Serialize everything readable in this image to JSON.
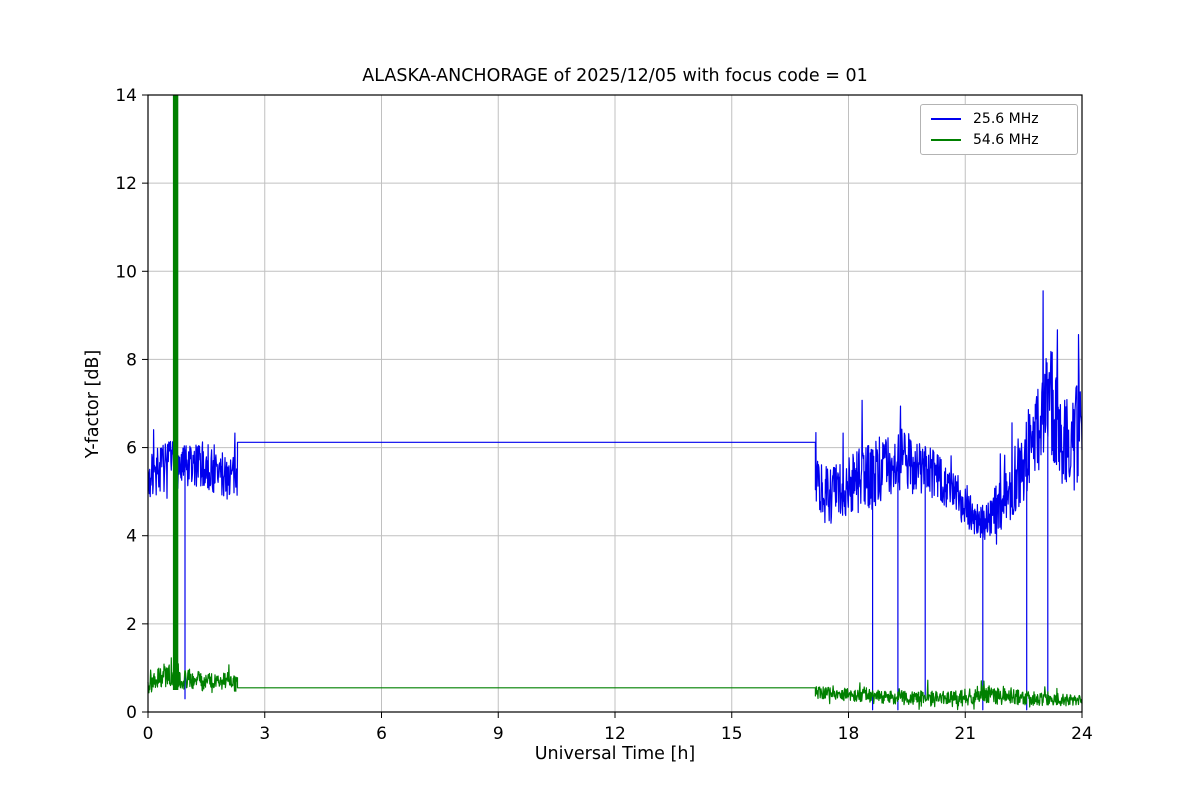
{
  "chart_data": {
    "type": "line",
    "title": "ALASKA-ANCHORAGE of 2025/12/05 with focus code = 01",
    "xlabel": "Universal Time [h]",
    "ylabel": "Y-factor [dB]",
    "xlim": [
      0,
      24
    ],
    "ylim": [
      0,
      14
    ],
    "xticks": [
      0,
      3,
      6,
      9,
      12,
      15,
      18,
      21,
      24
    ],
    "yticks": [
      0,
      2,
      4,
      6,
      8,
      10,
      12,
      14
    ],
    "grid": true,
    "legend_position": "upper right",
    "style": {
      "grid_color": "#c0c0c0",
      "axis_color": "#000000",
      "background": "#ffffff"
    },
    "render": {
      "seed": 7,
      "sample_per_hour": 90,
      "burst_prob": 0.08,
      "burst_scale": 2.4
    },
    "series": [
      {
        "name": "25.6 MHz",
        "color": "#0000ee",
        "segments": [
          {
            "kind": "noisy",
            "x0": 0.0,
            "x1": 2.3,
            "mean": [
              [
                0,
                5.2
              ],
              [
                0.25,
                5.5
              ],
              [
                0.6,
                5.6
              ],
              [
                1.0,
                5.5
              ],
              [
                1.4,
                5.6
              ],
              [
                1.8,
                5.4
              ],
              [
                2.3,
                5.35
              ]
            ],
            "amp": [
              [
                0,
                0.55
              ],
              [
                2.3,
                0.55
              ]
            ]
          },
          {
            "kind": "flat",
            "x0": 2.3,
            "x1": 17.15,
            "value": 6.12
          },
          {
            "kind": "noisy",
            "x0": 17.15,
            "x1": 24.0,
            "mean": [
              [
                17.15,
                5.5
              ],
              [
                17.35,
                4.9
              ],
              [
                17.8,
                5.0
              ],
              [
                18.3,
                5.3
              ],
              [
                18.8,
                5.45
              ],
              [
                19.3,
                5.75
              ],
              [
                19.7,
                5.6
              ],
              [
                20.1,
                5.45
              ],
              [
                20.5,
                5.15
              ],
              [
                20.9,
                4.85
              ],
              [
                21.3,
                4.35
              ],
              [
                21.6,
                4.35
              ],
              [
                21.9,
                4.7
              ],
              [
                22.2,
                5.1
              ],
              [
                22.5,
                5.7
              ],
              [
                22.8,
                6.3
              ],
              [
                23.05,
                6.9
              ],
              [
                23.25,
                6.9
              ],
              [
                23.5,
                6.3
              ],
              [
                23.75,
                6.1
              ],
              [
                24,
                6.3
              ]
            ],
            "amp": [
              [
                17.15,
                0.65
              ],
              [
                18.5,
                0.75
              ],
              [
                19.5,
                0.7
              ],
              [
                20.5,
                0.5
              ],
              [
                21.4,
                0.4
              ],
              [
                22.0,
                0.65
              ],
              [
                22.7,
                1.0
              ],
              [
                23.1,
                1.4
              ],
              [
                23.5,
                1.0
              ],
              [
                24,
                1.3
              ]
            ]
          }
        ],
        "spikes": [
          {
            "x": 0.95,
            "y": 0.3
          },
          {
            "x": 18.62,
            "y": 0.05
          },
          {
            "x": 19.27,
            "y": 0.05
          },
          {
            "x": 19.97,
            "y": 0.3
          },
          {
            "x": 21.45,
            "y": 0.05
          },
          {
            "x": 22.58,
            "y": 0.05
          },
          {
            "x": 23.12,
            "y": 0.25
          }
        ],
        "bars": []
      },
      {
        "name": "54.6 MHz",
        "color": "#008000",
        "segments": [
          {
            "kind": "noisy",
            "x0": 0.0,
            "x1": 2.3,
            "mean": [
              [
                0,
                0.6
              ],
              [
                0.3,
                0.8
              ],
              [
                0.55,
                0.85
              ],
              [
                0.9,
                0.75
              ],
              [
                1.3,
                0.7
              ],
              [
                1.7,
                0.65
              ],
              [
                2.05,
                0.72
              ],
              [
                2.3,
                0.6
              ]
            ],
            "amp": [
              [
                0,
                0.2
              ],
              [
                0.5,
                0.28
              ],
              [
                2.3,
                0.18
              ]
            ]
          },
          {
            "kind": "flat",
            "x0": 2.3,
            "x1": 17.15,
            "value": 0.55
          },
          {
            "kind": "noisy",
            "x0": 17.15,
            "x1": 24.0,
            "mean": [
              [
                17.15,
                0.45
              ],
              [
                18.0,
                0.4
              ],
              [
                19.0,
                0.35
              ],
              [
                20.0,
                0.3
              ],
              [
                20.8,
                0.3
              ],
              [
                21.5,
                0.42
              ],
              [
                21.9,
                0.35
              ],
              [
                23.0,
                0.3
              ],
              [
                24,
                0.25
              ]
            ],
            "amp": [
              [
                17.15,
                0.14
              ],
              [
                21.6,
                0.2
              ],
              [
                24,
                0.12
              ]
            ]
          }
        ],
        "spikes": [],
        "bars": [
          {
            "x0": 0.64,
            "x1": 0.78,
            "y0": 0.5,
            "y1": 14
          }
        ]
      }
    ]
  }
}
